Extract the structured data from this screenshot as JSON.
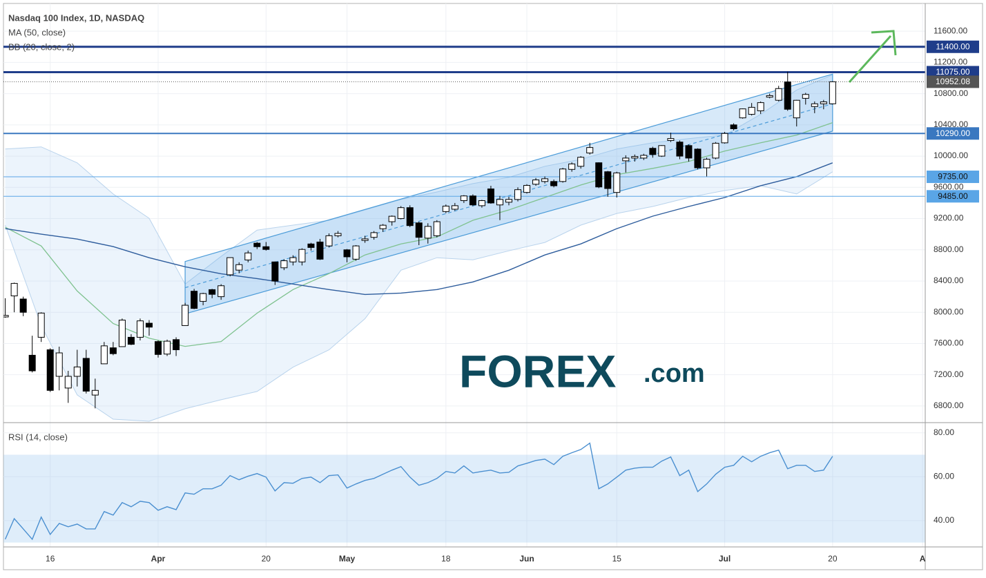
{
  "chart_data": {
    "type": "candlestick",
    "title": "Nasdaq 100 Index, 1D, NASDAQ",
    "grid": true,
    "xlim": [
      -0.2,
      102.3
    ],
    "xticks": [
      {
        "value": 5,
        "label": "16"
      },
      {
        "value": 17,
        "label": "Apr"
      },
      {
        "value": 29,
        "label": "20"
      },
      {
        "value": 38,
        "label": "May"
      },
      {
        "value": 49,
        "label": "18"
      },
      {
        "value": 58,
        "label": "Jun"
      },
      {
        "value": 68,
        "label": "15"
      },
      {
        "value": 80,
        "label": "Jul"
      },
      {
        "value": 92,
        "label": "20"
      },
      {
        "value": 102,
        "label": "A"
      }
    ],
    "ylim": [
      6587,
      11955
    ],
    "yticks": [
      {
        "value": 6800,
        "label": "6800.00"
      },
      {
        "value": 7200,
        "label": "7200.00"
      },
      {
        "value": 7600,
        "label": "7600.00"
      },
      {
        "value": 8000,
        "label": "8000.00"
      },
      {
        "value": 8400,
        "label": "8400.00"
      },
      {
        "value": 8800,
        "label": "8800.00"
      },
      {
        "value": 9200,
        "label": "9200.00"
      },
      {
        "value": 9600,
        "label": "9600.00"
      },
      {
        "value": 10000,
        "label": "10000.00"
      },
      {
        "value": 10400,
        "label": "10400.00"
      },
      {
        "value": 10800,
        "label": "10800.00"
      },
      {
        "value": 11200,
        "label": "11200.00"
      },
      {
        "value": 11600,
        "label": "11600.00"
      }
    ],
    "up_color": "#ffffff",
    "down_color": "#000000",
    "open": [
      7940,
      8210,
      8170,
      7450,
      7680,
      7520,
      7180,
      7030,
      7180,
      7410,
      6940,
      7340,
      7545,
      7560,
      7680,
      7680,
      7860,
      7625,
      7465,
      7650,
      7830,
      8270,
      8140,
      8290,
      8200,
      8480,
      8540,
      8670,
      8885,
      8840,
      8645,
      8570,
      8645,
      8645,
      8875,
      8900,
      8850,
      8980,
      8800,
      8680,
      8920,
      8960,
      9070,
      9160,
      9200,
      9340,
      9145,
      8950,
      8980,
      9290,
      9320,
      9430,
      9490,
      9365,
      9580,
      9375,
      9410,
      9445,
      9535,
      9640,
      9675,
      9675,
      9675,
      9830,
      9870,
      10040,
      9915,
      9800,
      9535,
      9940,
      9975,
      9975,
      10100,
      10000,
      10200,
      10180,
      10135,
      10090,
      9850,
      9975,
      10170,
      10400,
      10490,
      10535,
      10580,
      10755,
      10715,
      10950,
      10490,
      10740,
      10635,
      10670,
      10670
    ],
    "high": [
      8180,
      8380,
      8200,
      7700,
      8000,
      7540,
      7560,
      7250,
      7520,
      7520,
      7150,
      7620,
      7620,
      7920,
      7720,
      7920,
      7900,
      7640,
      7650,
      7680,
      8120,
      8300,
      8250,
      8300,
      8360,
      8700,
      8640,
      8790,
      8900,
      8900,
      8650,
      8680,
      8730,
      8820,
      8890,
      8940,
      9010,
      9040,
      8810,
      8860,
      8980,
      9040,
      9130,
      9240,
      9360,
      9370,
      9160,
      9140,
      9180,
      9380,
      9400,
      9500,
      9510,
      9440,
      9620,
      9490,
      9480,
      9600,
      9640,
      9720,
      9740,
      9700,
      9850,
      9920,
      10000,
      10170,
      9920,
      9810,
      9800,
      10010,
      10020,
      10030,
      10120,
      10140,
      10300,
      10200,
      10150,
      10100,
      9980,
      10180,
      10310,
      10420,
      10610,
      10680,
      10700,
      10800,
      10900,
      11080,
      10720,
      10810,
      10700,
      10720,
      10960
    ],
    "low": [
      7930,
      8000,
      7950,
      7230,
      7620,
      6980,
      7000,
      6840,
      7050,
      6960,
      6770,
      7340,
      7450,
      7560,
      7580,
      7640,
      7700,
      7420,
      7440,
      7440,
      7830,
      8040,
      8090,
      8180,
      8160,
      8460,
      8500,
      8640,
      8810,
      8790,
      8350,
      8540,
      8600,
      8600,
      8790,
      8670,
      8830,
      8960,
      8640,
      8660,
      8890,
      8930,
      9030,
      9110,
      9190,
      9090,
      8860,
      8880,
      8960,
      9270,
      9300,
      9400,
      9360,
      9340,
      9390,
      9180,
      9370,
      9420,
      9520,
      9620,
      9650,
      9600,
      9660,
      9800,
      9840,
      10020,
      9590,
      9480,
      9470,
      9790,
      9930,
      9950,
      9980,
      9990,
      10180,
      9960,
      9930,
      9830,
      9740,
      9960,
      10160,
      10330,
      10480,
      10520,
      10540,
      10740,
      10700,
      10580,
      10380,
      10660,
      10550,
      10600,
      10660
    ],
    "close": [
      7960,
      8370,
      8000,
      7250,
      7990,
      7000,
      7480,
      7180,
      7300,
      6990,
      7000,
      7570,
      7470,
      7900,
      7590,
      7890,
      7810,
      7460,
      7630,
      7520,
      8090,
      8050,
      8240,
      8230,
      8340,
      8700,
      8610,
      8760,
      8840,
      8805,
      8400,
      8660,
      8700,
      8805,
      8830,
      8680,
      8980,
      9010,
      8710,
      8850,
      8940,
      9020,
      9115,
      9230,
      9340,
      9110,
      8960,
      9100,
      9160,
      9360,
      9365,
      9490,
      9375,
      9430,
      9400,
      9445,
      9445,
      9570,
      9625,
      9695,
      9710,
      9620,
      9835,
      9900,
      9985,
      10110,
      9605,
      9585,
      9785,
      9975,
      9995,
      10010,
      10020,
      10135,
      10225,
      10000,
      9975,
      9850,
      9960,
      10165,
      10290,
      10350,
      10605,
      10625,
      10685,
      10775,
      10865,
      10600,
      10715,
      10790,
      10670,
      10695,
      10952.08
    ],
    "ma": {
      "name": "MA (50, close)",
      "color": "#2d5c9c",
      "x": [
        0,
        4,
        8,
        12,
        16,
        20,
        24,
        28,
        32,
        36,
        40,
        44,
        48,
        52,
        56,
        60,
        64,
        68,
        72,
        76,
        80,
        84,
        88,
        92
      ],
      "values": [
        9071,
        9000,
        8938,
        8841,
        8699,
        8583,
        8494,
        8432,
        8362,
        8291,
        8228,
        8246,
        8291,
        8388,
        8539,
        8734,
        8876,
        9071,
        9231,
        9355,
        9470,
        9621,
        9737,
        9914
      ]
    },
    "bb": {
      "name": "BB (20, close, 2)",
      "color": "#7fc28f",
      "band_color": "#b9d3ec",
      "fill": "rgba(170,205,240,0.22)",
      "x": [
        0,
        4,
        8,
        12,
        16,
        20,
        24,
        28,
        32,
        36,
        40,
        44,
        48,
        52,
        56,
        60,
        64,
        68,
        72,
        76,
        80,
        84,
        88,
        92
      ],
      "basis": [
        9089,
        8849,
        8273,
        7856,
        7669,
        7563,
        7625,
        7989,
        8291,
        8495,
        8734,
        8876,
        8965,
        9178,
        9311,
        9470,
        9630,
        9763,
        9843,
        9932,
        10065,
        10171,
        10269,
        10429
      ],
      "upper": [
        10091,
        10118,
        9914,
        9515,
        9204,
        8361,
        8716,
        9053,
        9116,
        9178,
        9311,
        9444,
        9541,
        9648,
        9728,
        9870,
        9958,
        10091,
        10171,
        10224,
        10269,
        10535,
        10846,
        11041
      ],
      "lower": [
        9116,
        7829,
        6942,
        6631,
        6605,
        6765,
        6880,
        6986,
        7297,
        7519,
        7918,
        8539,
        8699,
        8672,
        8787,
        8894,
        9116,
        9266,
        9355,
        9470,
        9559,
        9621,
        9515,
        9799
      ]
    },
    "channel": {
      "x": [
        20,
        92
      ],
      "upper": [
        8650,
        11050
      ],
      "middle": [
        8315,
        10670
      ],
      "lower": [
        7980,
        10320
      ],
      "color": "#4a9bd8",
      "fill": "rgba(110,175,235,0.28)"
    },
    "levels": [
      {
        "value": 11400,
        "label": "11400.00",
        "color": "#1f3d8a",
        "text_color": "#ffffff",
        "width": 3
      },
      {
        "value": 11075,
        "label": "11075.00",
        "color": "#1f3d8a",
        "text_color": "#ffffff",
        "width": 3
      },
      {
        "value": 10290,
        "label": "10290.00",
        "color": "#3a78c0",
        "text_color": "#ffffff",
        "width": 2
      },
      {
        "value": 9735,
        "label": "9735.00",
        "color": "#5aa5e6",
        "text_color": "#111111",
        "width": 1
      },
      {
        "value": 9485,
        "label": "9485.00",
        "color": "#5aa5e6",
        "text_color": "#111111",
        "width": 1
      }
    ],
    "last_price": {
      "value": 10952.08,
      "label": "10952.08",
      "color": "#555555"
    },
    "watermark": [
      "FOREX",
      ".com"
    ],
    "rsi": {
      "name": "RSI (14, close)",
      "color": "#4a8fd0",
      "ylim": [
        28,
        84
      ],
      "yticks": [
        {
          "value": 40,
          "label": "40.00"
        },
        {
          "value": 60,
          "label": "60.00"
        },
        {
          "value": 80,
          "label": "80.00"
        }
      ],
      "band": [
        30,
        70
      ],
      "band_color": "rgba(150,195,240,0.3)",
      "values": [
        31.5,
        40.9,
        36.2,
        31.5,
        41.6,
        33.7,
        38.7,
        37.2,
        38.4,
        36.2,
        36.2,
        44.1,
        42.5,
        48.2,
        46.3,
        48.8,
        48.2,
        44.7,
        46.3,
        45.0,
        52.6,
        52.0,
        54.5,
        54.5,
        56.1,
        60.5,
        58.6,
        60.2,
        61.4,
        59.8,
        53.5,
        57.3,
        57.0,
        59.2,
        59.8,
        57.3,
        60.5,
        60.8,
        54.8,
        56.7,
        58.3,
        59.2,
        61.1,
        63.0,
        64.6,
        59.8,
        56.1,
        57.3,
        59.2,
        62.4,
        61.7,
        64.9,
        61.7,
        62.4,
        63.0,
        61.7,
        62.0,
        64.9,
        66.1,
        67.4,
        68.0,
        65.5,
        69.3,
        70.9,
        72.4,
        75.3,
        54.5,
        56.7,
        59.8,
        63.0,
        63.9,
        64.3,
        64.3,
        67.1,
        69.0,
        60.5,
        63.0,
        53.2,
        56.7,
        61.1,
        64.3,
        65.2,
        69.3,
        66.8,
        69.3,
        70.9,
        72.1,
        63.6,
        65.2,
        65.2,
        62.4,
        63.0,
        69.3
      ]
    }
  }
}
